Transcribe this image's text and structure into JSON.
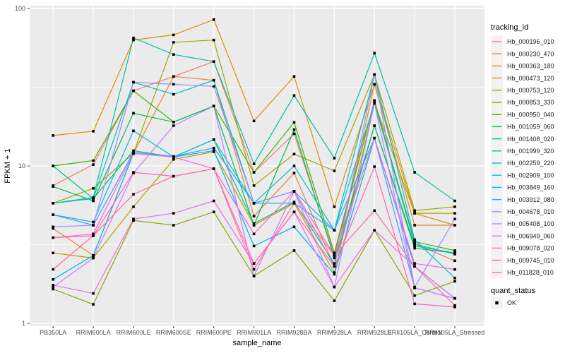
{
  "chart_data": {
    "type": "line",
    "title": "",
    "xlabel": "sample_name",
    "ylabel": "FPKM + 1",
    "y_scale": "log10",
    "ylim": [
      1,
      100
    ],
    "y_major_ticks": [
      1,
      10,
      100
    ],
    "y_minor_ticks": [
      3.162,
      31.62
    ],
    "grid": true,
    "panel_bg_color": "#EBEBEB",
    "grid_color": "#FFFFFF",
    "tick_label_color": "#4D4D4D",
    "point_color": "#000000",
    "point_shape": "filled-square",
    "legend_position": "right",
    "legend_key_bg": "#F2F2F2",
    "categories": [
      "PB350LA",
      "RRIM600LA",
      "RRIM600LE",
      "RRIM600SE",
      "RRIM600PE",
      "RRIM901LA",
      "RRIM928BA",
      "RRIM928LA",
      "RRIM928LE",
      "RRII105LA_Control",
      "RRII105LA_Stressed"
    ],
    "legend_title": "tracking_id",
    "series": [
      {
        "name": "Hb_000196_010",
        "color": "#F8766D",
        "values": [
          7.5,
          10.2,
          30,
          37,
          46,
          9.1,
          16,
          2.7,
          26,
          3.2,
          2.5
        ]
      },
      {
        "name": "Hb_000230_470",
        "color": "#EA8331",
        "values": [
          4.0,
          2.7,
          12,
          37,
          35,
          4.8,
          9.0,
          2.3,
          33,
          4.2,
          4.2
        ]
      },
      {
        "name": "Hb_000363_180",
        "color": "#D89000",
        "values": [
          15.6,
          16.6,
          63,
          68,
          85,
          19.3,
          37,
          5.5,
          33,
          5.0,
          4.2
        ]
      },
      {
        "name": "Hb_000473_120",
        "color": "#C09B00",
        "values": [
          2.8,
          2.6,
          5.5,
          11,
          12.3,
          4.2,
          5.8,
          2.1,
          25,
          5.0,
          5.0
        ]
      },
      {
        "name": "Hb_000753_120",
        "color": "#A3A500",
        "values": [
          5.8,
          7.2,
          12,
          61,
          63,
          7.5,
          11.9,
          9.3,
          38,
          5.2,
          5.5
        ]
      },
      {
        "name": "Hb_000853_330",
        "color": "#7CAE00",
        "values": [
          1.65,
          1.32,
          4.5,
          4.2,
          5.1,
          2.0,
          2.9,
          1.39,
          3.9,
          1.5,
          1.85
        ]
      },
      {
        "name": "Hb_000950_040",
        "color": "#39B600",
        "values": [
          10.0,
          10.8,
          30,
          19,
          24,
          9.1,
          18.9,
          2.8,
          26,
          3.3,
          2.9
        ]
      },
      {
        "name": "Hb_001059_060",
        "color": "#00BB4E",
        "values": [
          7.4,
          6.0,
          21.6,
          19,
          24,
          4.2,
          17,
          2.6,
          18,
          3.1,
          2.8
        ]
      },
      {
        "name": "Hb_001408_020",
        "color": "#00BF7D",
        "values": [
          10.0,
          6.2,
          12.5,
          11.4,
          14.7,
          4.3,
          5.9,
          2.4,
          18,
          3.0,
          2.8
        ]
      },
      {
        "name": "Hb_001999_320",
        "color": "#00C1A3",
        "values": [
          5.8,
          6.3,
          65,
          51,
          46,
          10.3,
          28,
          11.2,
          52,
          9.1,
          6.0
        ]
      },
      {
        "name": "Hb_002259_220",
        "color": "#00BFC4",
        "values": [
          5.8,
          6.2,
          34,
          28.5,
          35,
          5.8,
          10,
          3.9,
          38,
          3.4,
          1.94
        ]
      },
      {
        "name": "Hb_002909_100",
        "color": "#00BAE0",
        "values": [
          4.9,
          4.4,
          16.7,
          11.4,
          14.7,
          5.8,
          5.8,
          3.9,
          25,
          3.2,
          2.75
        ]
      },
      {
        "name": "Hb_003849_160",
        "color": "#00B0F6",
        "values": [
          1.9,
          2.7,
          12,
          11.4,
          12.5,
          3.1,
          4.1,
          2.05,
          15,
          2.3,
          1.44
        ]
      },
      {
        "name": "Hb_003912_080",
        "color": "#35A2FF",
        "values": [
          4.9,
          4.2,
          12.2,
          11.5,
          13,
          5.8,
          6.9,
          3.9,
          15,
          1.68,
          1.44
        ]
      },
      {
        "name": "Hb_004678_010",
        "color": "#9590FF",
        "values": [
          4.1,
          4.2,
          34,
          33,
          32,
          5.8,
          6.9,
          2.3,
          38,
          1.7,
          4.6
        ]
      },
      {
        "name": "Hb_005408_100",
        "color": "#C77CFF",
        "values": [
          1.7,
          2.6,
          9.0,
          18,
          24,
          2.0,
          6.9,
          1.7,
          25,
          1.68,
          1.44
        ]
      },
      {
        "name": "Hb_006949_060",
        "color": "#E76BF3",
        "values": [
          1.75,
          1.55,
          4.6,
          5.0,
          6.0,
          2.4,
          5.1,
          1.7,
          3.9,
          2.3,
          1.44
        ]
      },
      {
        "name": "Hb_009078_020",
        "color": "#FA62DB",
        "values": [
          3.5,
          3.7,
          12,
          11.4,
          9.6,
          3.7,
          6.9,
          2.7,
          15,
          2.4,
          2.2
        ]
      },
      {
        "name": "Hb_009745_010",
        "color": "#FF62BC",
        "values": [
          3.5,
          3.6,
          9.1,
          8.6,
          9.6,
          2.4,
          5.1,
          2.3,
          9.9,
          1.33,
          1.27
        ]
      },
      {
        "name": "Hb_011828_010",
        "color": "#FF6A98",
        "values": [
          2.2,
          3.6,
          6.6,
          8.6,
          9.6,
          2.2,
          5.8,
          2.7,
          5.2,
          2.3,
          1.3
        ]
      }
    ],
    "point_legend": {
      "title": "quant_status",
      "items": [
        {
          "label": "OK",
          "shape": "black-square"
        }
      ]
    }
  }
}
